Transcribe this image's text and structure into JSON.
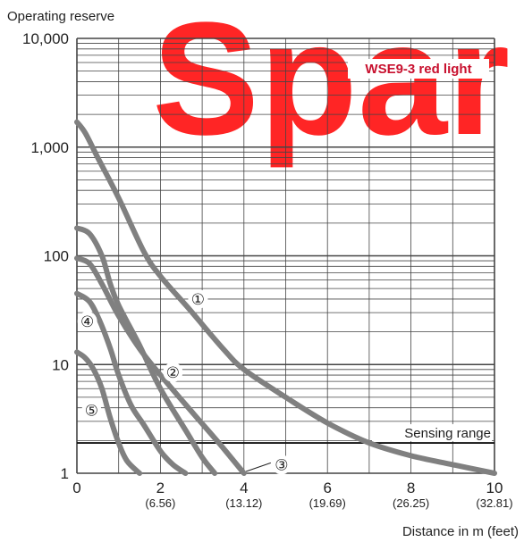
{
  "chart_data": {
    "type": "line",
    "ylabel": "Operating reserve",
    "xlabel": "Distance in m (feet)",
    "yscale": "log",
    "ylim": [
      1,
      10000
    ],
    "xlim": [
      0,
      10
    ],
    "grid": true,
    "colors": {
      "curve": "#808080",
      "grid": "#444444",
      "watermark": "#ff0000",
      "badge_text": "#c8102e"
    },
    "x_ticks": [
      {
        "value": 0,
        "label": "0",
        "sub": ""
      },
      {
        "value": 2,
        "label": "2",
        "sub": "(6.56)"
      },
      {
        "value": 4,
        "label": "4",
        "sub": "(13.12)"
      },
      {
        "value": 6,
        "label": "6",
        "sub": "(19.69)"
      },
      {
        "value": 8,
        "label": "8",
        "sub": "(26.25)"
      },
      {
        "value": 10,
        "label": "10",
        "sub": "(32.81)"
      }
    ],
    "y_ticks": [
      {
        "value": 1,
        "label": "1"
      },
      {
        "value": 10,
        "label": "10"
      },
      {
        "value": 100,
        "label": "100"
      },
      {
        "value": 1000,
        "label": "1,000"
      },
      {
        "value": 10000,
        "label": "10,000"
      }
    ],
    "product_label": "WSE9-3 red light",
    "watermark": "Spar",
    "sensing_range": {
      "value": 1.9,
      "label": "Sensing range"
    },
    "series": [
      {
        "label": "①",
        "x": [
          0,
          0.2,
          0.5,
          1.0,
          1.6,
          2.0,
          2.7,
          3.5,
          4.0,
          5.0,
          6.0,
          7.0,
          8.0,
          9.0,
          10.0
        ],
        "y": [
          1700,
          1350,
          800,
          340,
          110,
          65,
          32,
          14,
          9,
          5,
          2.9,
          1.9,
          1.45,
          1.2,
          1.0
        ]
      },
      {
        "label": "②",
        "x": [
          0,
          0.3,
          0.6,
          0.8,
          1.0,
          1.5,
          2.0,
          2.6,
          3.0,
          3.3
        ],
        "y": [
          180,
          160,
          100,
          55,
          35,
          15,
          6,
          2.5,
          1.4,
          1.0
        ]
      },
      {
        "label": "③",
        "x": [
          0,
          0.3,
          0.6,
          1.0,
          1.5,
          2.0,
          2.8,
          3.4,
          4.0
        ],
        "y": [
          95,
          85,
          55,
          28,
          14,
          8,
          3.5,
          1.9,
          1.0
        ]
      },
      {
        "label": "④",
        "x": [
          0,
          0.3,
          0.55,
          0.8,
          1.0,
          1.3,
          1.6,
          2.0,
          2.3,
          2.6
        ],
        "y": [
          45,
          38,
          25,
          14,
          8,
          4.2,
          2.8,
          1.6,
          1.2,
          1.0
        ]
      },
      {
        "label": "⑤",
        "x": [
          0,
          0.2,
          0.4,
          0.6,
          0.8,
          1.0,
          1.2,
          1.5
        ],
        "y": [
          13,
          11.5,
          9,
          6,
          3.2,
          1.9,
          1.3,
          1.0
        ]
      }
    ],
    "curve_labels": [
      {
        "label": "①",
        "x": 2.9,
        "y": 40
      },
      {
        "label": "②",
        "x": 2.3,
        "y": 8.5
      },
      {
        "label": "③",
        "x": 4.9,
        "y": 1.2
      },
      {
        "label": "④",
        "x": 0.25,
        "y": 25
      },
      {
        "label": "⑤",
        "x": 0.35,
        "y": 3.8
      }
    ]
  }
}
